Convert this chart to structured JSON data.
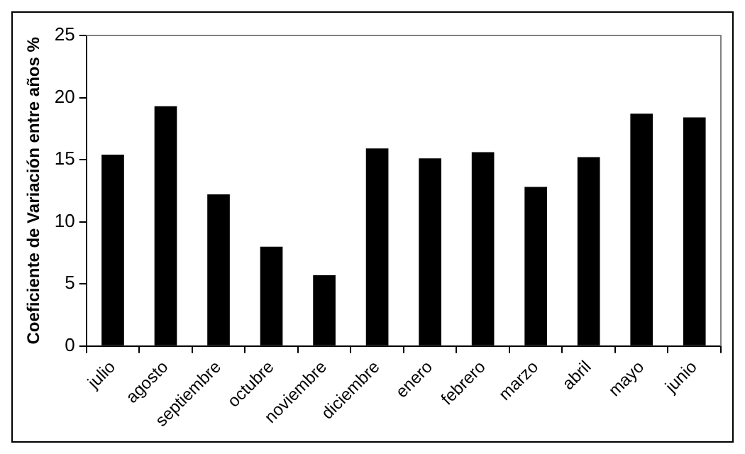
{
  "chart_data": {
    "type": "bar",
    "ylabel": "Coeficiente de Variación entre años %",
    "categories": [
      "julio",
      "agosto",
      "septiembre",
      "octubre",
      "noviembre",
      "diciembre",
      "enero",
      "febrero",
      "marzo",
      "abril",
      "mayo",
      "junio"
    ],
    "values": [
      15.4,
      19.3,
      12.2,
      8.0,
      5.7,
      15.9,
      15.1,
      15.6,
      12.8,
      15.2,
      18.7,
      18.4
    ],
    "color": "#000000",
    "ylim": [
      0,
      25
    ],
    "yticks": [
      0,
      5,
      10,
      15,
      20,
      25
    ],
    "grid": false,
    "legend": false
  }
}
